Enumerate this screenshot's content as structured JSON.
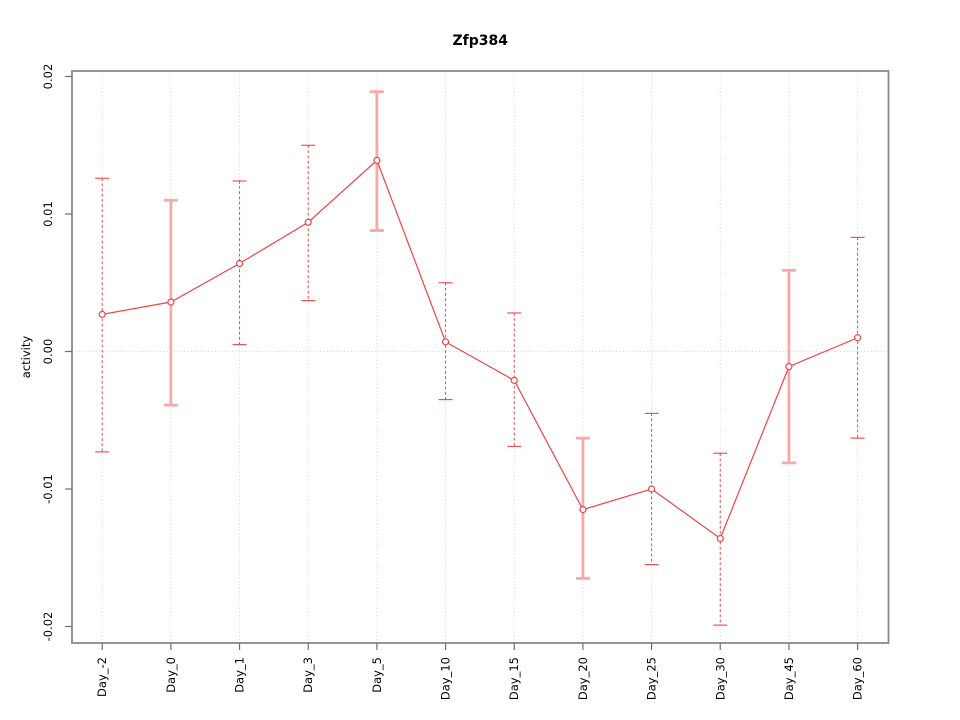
{
  "figure": {
    "title": "Zfp384"
  },
  "chart_data": {
    "type": "line",
    "title": "Zfp384",
    "xlabel": "",
    "ylabel": "activity",
    "categories": [
      "Day_-2",
      "Day_0",
      "Day_1",
      "Day_3",
      "Day_5",
      "Day_10",
      "Day_15",
      "Day_20",
      "Day_25",
      "Day_30",
      "Day_45",
      "Day_60"
    ],
    "series": [
      {
        "name": "activity",
        "values": [
          0.0027,
          0.0036,
          0.0064,
          0.0094,
          0.0139,
          0.0007,
          -0.0021,
          -0.0115,
          -0.01,
          -0.0136,
          -0.0011,
          0.001
        ],
        "error_lower": [
          -0.0073,
          -0.0039,
          0.0005,
          0.0037,
          0.0088,
          -0.0035,
          -0.0069,
          -0.0165,
          -0.0155,
          -0.0199,
          -0.0081,
          -0.0063
        ],
        "error_upper": [
          0.0126,
          0.011,
          0.0124,
          0.015,
          0.0189,
          0.005,
          0.0028,
          -0.0063,
          -0.0045,
          -0.0074,
          0.0059,
          0.0083
        ],
        "error_bar_styles": [
          "dashed",
          "thick",
          "dashed",
          "dashed",
          "thick",
          "dashed",
          "dashed",
          "thick",
          "dashed",
          "dashed",
          "thick",
          "dashed"
        ]
      }
    ],
    "ylim": [
      -0.0212,
      0.0204
    ],
    "yticks": [
      -0.02,
      -0.01,
      0,
      0.01,
      0.02
    ],
    "ytick_labels": [
      "-0.02",
      "-0.01",
      "0.00",
      "0.01",
      "0.02"
    ],
    "grid": {
      "vertical_gridlines": "dotted line at every category",
      "horizontal_zero_line": true,
      "style": "dotted"
    },
    "legend": "none",
    "marker": "open-circle",
    "colors": {
      "line": "#ee4444",
      "marker": "#ee4444",
      "error_bar_dashed": "#ee4444",
      "error_bar_thick": "#f8a8a8",
      "grid": "#d4d4d4",
      "frame": "#8a8a8a",
      "tick": "#6f6f6f",
      "text": "#000000",
      "background": "#ffffff"
    }
  }
}
